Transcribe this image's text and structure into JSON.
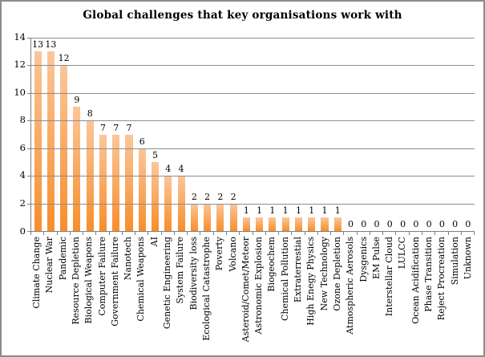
{
  "chart_data": {
    "type": "bar",
    "title": "Global challenges that key organisations work with",
    "categories": [
      "Climate Change",
      "Nuclear War",
      "Pandemic",
      "Resource Depletion",
      "Biological Weapons",
      "Computer Failure",
      "Government Failure",
      "Nanotech",
      "Chemical Weapons",
      "AI",
      "Genetic Engineering",
      "System Failure",
      "Biodiversity loss",
      "Ecological Catastrophe",
      "Poverty",
      "Volcano",
      "Asteroid/Comet/Meteor",
      "Astronomic Explosion",
      "Biogeochem",
      "Chemical Pollution",
      "Extraterrestial",
      "High Enegy Physics",
      "New Technology",
      "Ozone Depletion",
      "Atmospheric Aerosols",
      "Dysgenics",
      "EM Pulse",
      "Interstellar Cloud",
      "LULCC",
      "Ocean Acidification",
      "Phase Transition",
      "Reject Procreation",
      "Simulation",
      "Unknown"
    ],
    "values": [
      13,
      13,
      12,
      9,
      8,
      7,
      7,
      7,
      6,
      5,
      4,
      4,
      2,
      2,
      2,
      2,
      1,
      1,
      1,
      1,
      1,
      1,
      1,
      1,
      0,
      0,
      0,
      0,
      0,
      0,
      0,
      0,
      0,
      0
    ],
    "xlabel": "",
    "ylabel": "",
    "ylim": [
      0,
      14
    ],
    "yticks": [
      0,
      2,
      4,
      6,
      8,
      10,
      12,
      14
    ],
    "grid": true,
    "legend": false,
    "data_labels": true,
    "bar_color_top": "#fbc699",
    "bar_color_bottom": "#f78e2c",
    "gridline_color": "#8e8e8e",
    "axis_color": "#7f7f7f",
    "border_color": "#8c8c8c"
  }
}
